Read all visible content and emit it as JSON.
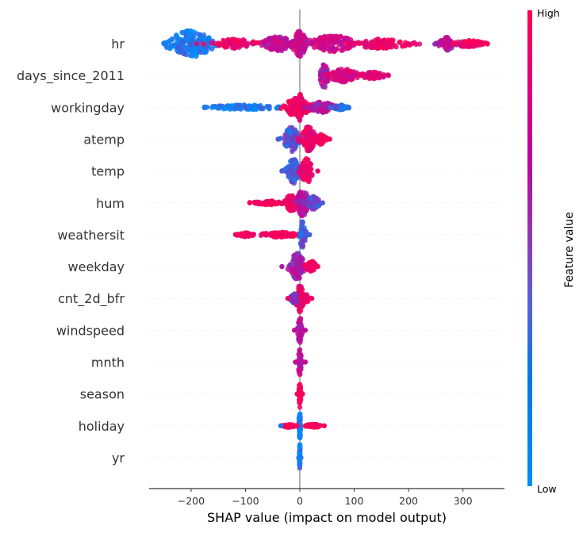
{
  "chart_data": {
    "type": "scatter",
    "subtype": "shap-beeswarm-summary",
    "xlabel": "SHAP value (impact on model output)",
    "ylabel": "",
    "xlim": [
      -278,
      375
    ],
    "xticks": [
      -200,
      -100,
      0,
      100,
      200,
      300
    ],
    "xtick_labels": [
      "−200",
      "−100",
      "0",
      "100",
      "200",
      "300"
    ],
    "grid": "dotted horizontal per feature",
    "colorbar": {
      "title": "Feature value",
      "high_label": "High",
      "low_label": "Low",
      "high_color": "#ff0052",
      "mid_color": "#b80da0",
      "low_color": "#008bfb"
    },
    "features": [
      {
        "name": "hr",
        "min": -250,
        "max": 345,
        "clusters": [
          {
            "center": -200,
            "spread": 45,
            "height": 1.0,
            "color": 0.05
          },
          {
            "center": -120,
            "spread": 40,
            "height": 0.35,
            "color": 0.85
          },
          {
            "center": -40,
            "spread": 30,
            "height": 0.55,
            "color": 0.6
          },
          {
            "center": 0,
            "spread": 15,
            "height": 0.95,
            "color": 0.6
          },
          {
            "center": 60,
            "spread": 50,
            "height": 0.6,
            "color": 0.65
          },
          {
            "center": 150,
            "spread": 60,
            "height": 0.35,
            "color": 0.85
          },
          {
            "center": 270,
            "spread": 15,
            "height": 0.5,
            "color": 0.55
          },
          {
            "center": 310,
            "spread": 30,
            "height": 0.25,
            "color": 0.9
          }
        ]
      },
      {
        "name": "days_since_2011",
        "min": 38,
        "max": 163,
        "clusters": [
          {
            "center": 45,
            "spread": 8,
            "height": 1.0,
            "color": 0.5
          },
          {
            "center": 80,
            "spread": 30,
            "height": 0.5,
            "color": 0.7
          },
          {
            "center": 135,
            "spread": 25,
            "height": 0.25,
            "color": 0.75
          }
        ]
      },
      {
        "name": "workingday",
        "min": -175,
        "max": 90,
        "clusters": [
          {
            "center": -100,
            "spread": 70,
            "height": 0.18,
            "color": 0.05
          },
          {
            "center": -5,
            "spread": 25,
            "height": 0.7,
            "color": 0.95
          },
          {
            "center": 0,
            "spread": 6,
            "height": 1.0,
            "color": 0.9
          },
          {
            "center": 40,
            "spread": 25,
            "height": 0.4,
            "color": 0.5
          },
          {
            "center": 75,
            "spread": 15,
            "height": 0.18,
            "color": 0.1
          }
        ]
      },
      {
        "name": "atemp",
        "min": -40,
        "max": 55,
        "clusters": [
          {
            "center": -15,
            "spread": 15,
            "height": 0.95,
            "color": 0.2
          },
          {
            "center": 15,
            "spread": 15,
            "height": 0.95,
            "color": 0.85
          },
          {
            "center": 38,
            "spread": 12,
            "height": 0.4,
            "color": 0.95
          }
        ]
      },
      {
        "name": "temp",
        "min": -33,
        "max": 33,
        "clusters": [
          {
            "center": -12,
            "spread": 12,
            "height": 0.95,
            "color": 0.2
          },
          {
            "center": 12,
            "spread": 12,
            "height": 0.95,
            "color": 0.85
          }
        ]
      },
      {
        "name": "hum",
        "min": -92,
        "max": 42,
        "clusters": [
          {
            "center": -55,
            "spread": 30,
            "height": 0.15,
            "color": 0.95
          },
          {
            "center": -15,
            "spread": 15,
            "height": 0.6,
            "color": 0.9
          },
          {
            "center": 5,
            "spread": 12,
            "height": 1.0,
            "color": 0.5
          },
          {
            "center": 25,
            "spread": 12,
            "height": 0.5,
            "color": 0.2
          }
        ]
      },
      {
        "name": "weathersit",
        "min": -118,
        "max": 18,
        "clusters": [
          {
            "center": -100,
            "spread": 15,
            "height": 0.15,
            "color": 0.95
          },
          {
            "center": -35,
            "spread": 35,
            "height": 0.2,
            "color": 0.95
          },
          {
            "center": 5,
            "spread": 6,
            "height": 1.0,
            "color": 0.15
          }
        ]
      },
      {
        "name": "weekday",
        "min": -33,
        "max": 33,
        "clusters": [
          {
            "center": -5,
            "spread": 15,
            "height": 1.0,
            "color": 0.45
          },
          {
            "center": 20,
            "spread": 10,
            "height": 0.45,
            "color": 0.9
          }
        ]
      },
      {
        "name": "cnt_2d_bfr",
        "min": -22,
        "max": 22,
        "clusters": [
          {
            "center": 0,
            "spread": 8,
            "height": 1.0,
            "color": 0.85
          },
          {
            "center": -10,
            "spread": 8,
            "height": 0.35,
            "color": 0.3
          },
          {
            "center": 10,
            "spread": 8,
            "height": 0.35,
            "color": 0.9
          }
        ]
      },
      {
        "name": "windspeed",
        "min": -10,
        "max": 10,
        "clusters": [
          {
            "center": 0,
            "spread": 4,
            "height": 1.0,
            "color": 0.55
          }
        ]
      },
      {
        "name": "mnth",
        "min": -8,
        "max": 10,
        "clusters": [
          {
            "center": 0,
            "spread": 3,
            "height": 1.0,
            "color": 0.6
          }
        ]
      },
      {
        "name": "season",
        "min": -5,
        "max": 5,
        "clusters": [
          {
            "center": 0,
            "spread": 2,
            "height": 1.0,
            "color": 0.95
          }
        ]
      },
      {
        "name": "holiday",
        "min": -35,
        "max": 45,
        "clusters": [
          {
            "center": 0,
            "spread": 2,
            "height": 1.0,
            "color": 0.05
          },
          {
            "center": -20,
            "spread": 12,
            "height": 0.12,
            "color": 0.95
          },
          {
            "center": 25,
            "spread": 15,
            "height": 0.12,
            "color": 0.95
          }
        ]
      },
      {
        "name": "yr",
        "min": -2,
        "max": 2,
        "clusters": [
          {
            "center": 0,
            "spread": 1,
            "height": 1.0,
            "color": 0.05
          }
        ]
      }
    ]
  }
}
